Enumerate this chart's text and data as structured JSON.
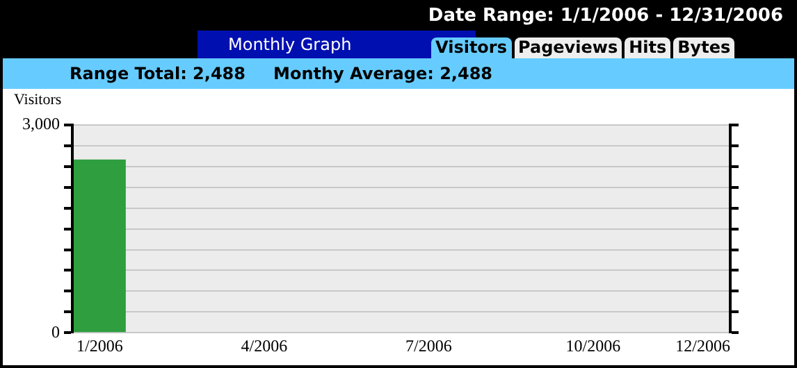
{
  "chart_data": {
    "type": "bar",
    "title": "Monthly Graph",
    "subtitle": "Date Range: 1/1/2006 - 12/31/2006",
    "ylabel": "Visitors",
    "annotations": [
      "Range Total: 2,488",
      "Monthy Average: 2,488",
      "Visitors",
      "Pageviews",
      "Hits",
      "Bytes"
    ],
    "categories": [
      "1/2006",
      null,
      null,
      "4/2006",
      null,
      null,
      "7/2006",
      null,
      null,
      "10/2006",
      null,
      "12/2006"
    ],
    "values": [
      2500,
      0,
      0,
      0,
      0,
      0,
      0,
      0,
      0,
      0,
      0,
      0
    ],
    "color": "#2e9e3e",
    "ylim": [
      0,
      3000
    ],
    "yticks": [
      {
        "value": 0,
        "label": "0"
      },
      {
        "value": 300,
        "label": null
      },
      {
        "value": 600,
        "label": null
      },
      {
        "value": 900,
        "label": null
      },
      {
        "value": 1200,
        "label": null
      },
      {
        "value": 1500,
        "label": null
      },
      {
        "value": 1800,
        "label": null
      },
      {
        "value": 2100,
        "label": null
      },
      {
        "value": 2400,
        "label": null
      },
      {
        "value": 2700,
        "label": null
      },
      {
        "value": 3000,
        "label": "3,000"
      }
    ],
    "grid": "y",
    "legend": false
  }
}
